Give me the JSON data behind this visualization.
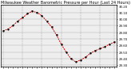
{
  "title": "Milwaukee Weather Barometric Pressure per Hour (Last 24 Hours)",
  "x_values": [
    0,
    1,
    2,
    3,
    4,
    5,
    6,
    7,
    8,
    9,
    10,
    11,
    12,
    13,
    14,
    15,
    16,
    17,
    18,
    19,
    20,
    21,
    22,
    23
  ],
  "y_values": [
    29.82,
    29.85,
    29.9,
    29.97,
    30.02,
    30.08,
    30.12,
    30.1,
    30.05,
    29.97,
    29.88,
    29.76,
    29.62,
    29.5,
    29.4,
    29.35,
    29.38,
    29.42,
    29.48,
    29.52,
    29.55,
    29.58,
    29.62,
    29.65
  ],
  "line_color": "#cc0000",
  "marker_color": "#000000",
  "bg_color": "#ffffff",
  "plot_bg_color": "#eeeeee",
  "grid_color": "#888888",
  "ylim_min": 29.28,
  "ylim_max": 30.22,
  "ytick_step": 0.1,
  "title_fontsize": 3.5,
  "tick_fontsize": 2.8,
  "gridline_positions": [
    0,
    4,
    8,
    12,
    16,
    20,
    23
  ]
}
